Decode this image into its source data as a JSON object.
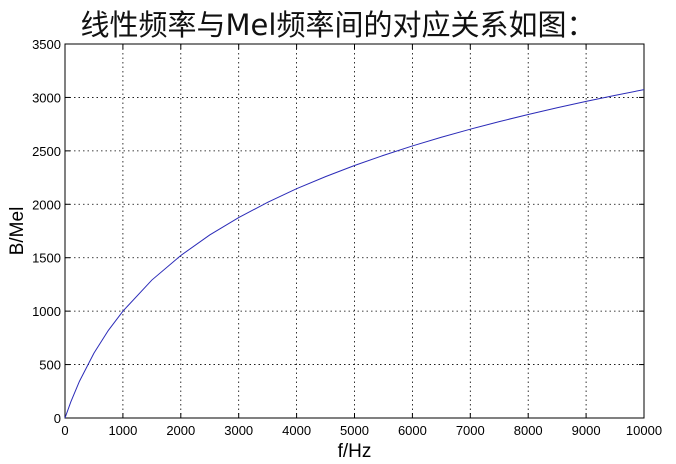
{
  "page": {
    "title": "线性频率与Mel频率间的对应关系如图："
  },
  "chart_data": {
    "type": "line",
    "title": "",
    "xlabel": "f/Hz",
    "ylabel": "B/Mel",
    "xlim": [
      0,
      10000
    ],
    "ylim": [
      0,
      3500
    ],
    "grid": true,
    "xticks": [
      0,
      1000,
      2000,
      3000,
      4000,
      5000,
      6000,
      7000,
      8000,
      9000,
      10000
    ],
    "yticks": [
      0,
      500,
      1000,
      1500,
      2000,
      2500,
      3000,
      3500
    ],
    "line_color": "#2b2bb8",
    "series": [
      {
        "x": [
          0,
          100,
          250,
          500,
          750,
          1000,
          1500,
          2000,
          2500,
          3000,
          3500,
          4000,
          4500,
          5000,
          5500,
          6000,
          6500,
          7000,
          7500,
          8000,
          8500,
          9000,
          9500,
          10000
        ],
        "values": [
          0,
          150,
          344,
          607,
          821,
          1000,
          1291,
          1521,
          1713,
          1876,
          2018,
          2146,
          2259,
          2363,
          2458,
          2546,
          2627,
          2703,
          2774,
          2840,
          2903,
          2963,
          3019,
          3073
        ]
      }
    ]
  }
}
